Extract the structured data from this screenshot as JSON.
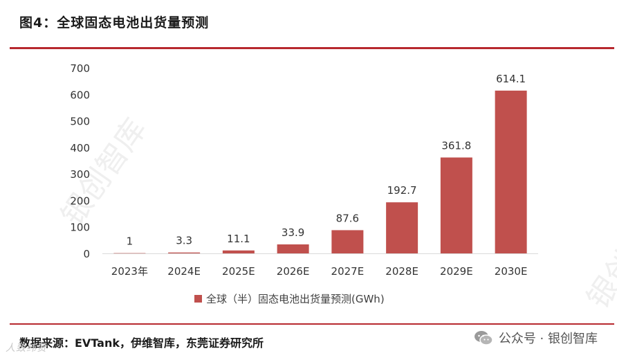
{
  "figure_title": "图4：全球固态电池出货量预测",
  "source": "数据来源：EVTank，伊维智库，东莞证券研究所",
  "wechat_account": "公众号 · 银创智库",
  "watermark_text": "银创智库",
  "corner_mark": "人致纬赞",
  "colors": {
    "bar": "#c0504d",
    "rule": "#b7282e"
  },
  "chart_data": {
    "type": "bar",
    "title": "",
    "categories": [
      "2023年",
      "2024E",
      "2025E",
      "2026E",
      "2027E",
      "2028E",
      "2029E",
      "2030E"
    ],
    "series": [
      {
        "name": "全球（半）固态电池出货量预测(GWh)",
        "values": [
          1,
          3.3,
          11.1,
          33.9,
          87.6,
          192.7,
          361.8,
          614.1
        ],
        "labels": [
          "1",
          "3.3",
          "11.1",
          "33.9",
          "87.6",
          "192.7",
          "361.8",
          "614.1"
        ]
      }
    ],
    "xlabel": "",
    "ylabel": "",
    "ylim": [
      0,
      700
    ],
    "yticks": [
      0,
      100,
      200,
      300,
      400,
      500,
      600,
      700
    ],
    "grid": false,
    "legend_position": "bottom-center"
  }
}
